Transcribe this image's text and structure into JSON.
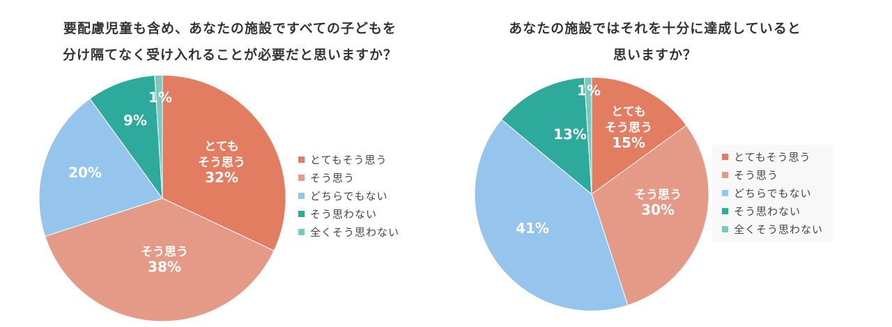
{
  "chart_data": [
    {
      "type": "pie",
      "title_lines": [
        "要配慮児童も含め、あなたの施設ですべての子どもを",
        "分け隔てなく受け入れることが必要だと思いますか？"
      ],
      "categories": [
        "とてもそう思う",
        "そう思う",
        "どちらでもない",
        "そう思わない",
        "全くそう思わない"
      ],
      "values": [
        32,
        38,
        20,
        9,
        1
      ],
      "labels": [
        {
          "lines": [
            "とても",
            "そう思う"
          ],
          "value": "32%"
        },
        {
          "lines": [
            "そう思う"
          ],
          "value": "38%"
        },
        {
          "lines": [],
          "value": "20%"
        },
        {
          "lines": [],
          "value": "9%"
        },
        {
          "lines": [],
          "value": "1%"
        }
      ],
      "legend_position": "right"
    },
    {
      "type": "pie",
      "title_lines": [
        "あなたの施設ではそれを十分に達成していると",
        "思いますか？"
      ],
      "categories": [
        "とてもそう思う",
        "そう思う",
        "どちらでもない",
        "そう思わない",
        "全くそう思わない"
      ],
      "values": [
        15,
        30,
        41,
        13,
        1
      ],
      "labels": [
        {
          "lines": [
            "とても",
            "そう思う"
          ],
          "value": "15%"
        },
        {
          "lines": [
            "そう思う"
          ],
          "value": "30%"
        },
        {
          "lines": [],
          "value": "41%"
        },
        {
          "lines": [],
          "value": "13%"
        },
        {
          "lines": [],
          "value": "1%"
        }
      ],
      "legend_position": "right"
    }
  ],
  "colors": [
    "#e37d62",
    "#e49a86",
    "#95c4ec",
    "#2daa9c",
    "#7dc8bd"
  ]
}
